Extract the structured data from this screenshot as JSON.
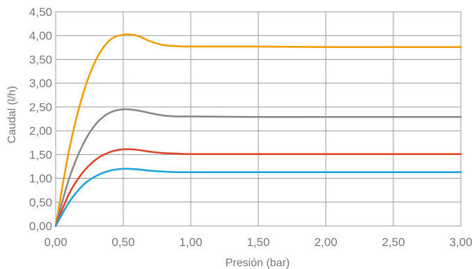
{
  "chart_data": {
    "type": "line",
    "title": "",
    "xlabel": "Presión (bar)",
    "ylabel": "Caudal (l/h)",
    "xlim": [
      0,
      3
    ],
    "ylim": [
      0,
      4.5
    ],
    "x_ticks": [
      "0,00",
      "0,50",
      "1,00",
      "1,50",
      "2,00",
      "2,50",
      "3,00"
    ],
    "y_ticks": [
      "0,00",
      "0,50",
      "1,00",
      "1,50",
      "2,00",
      "2,50",
      "3,00",
      "3,50",
      "4,00",
      "4,50"
    ],
    "grid": true,
    "legend": "none",
    "x": [
      0,
      0.1,
      0.2,
      0.3,
      0.4,
      0.5,
      0.6,
      0.7,
      0.8,
      0.9,
      1.0,
      1.5,
      2.0,
      2.5,
      3.0
    ],
    "series": [
      {
        "color": "#f29d00",
        "values": [
          0,
          1.6,
          2.75,
          3.5,
          3.9,
          4.02,
          4.0,
          3.88,
          3.8,
          3.78,
          3.77,
          3.77,
          3.76,
          3.76,
          3.76
        ]
      },
      {
        "color": "#888888",
        "values": [
          0,
          1.0,
          1.7,
          2.15,
          2.38,
          2.45,
          2.43,
          2.37,
          2.32,
          2.3,
          2.3,
          2.29,
          2.29,
          2.29,
          2.29
        ]
      },
      {
        "color": "#e0452b",
        "values": [
          0,
          0.68,
          1.12,
          1.4,
          1.55,
          1.61,
          1.6,
          1.56,
          1.53,
          1.52,
          1.51,
          1.51,
          1.51,
          1.51,
          1.51
        ]
      },
      {
        "color": "#1ea3dc",
        "values": [
          0,
          0.5,
          0.85,
          1.05,
          1.16,
          1.2,
          1.19,
          1.16,
          1.14,
          1.13,
          1.13,
          1.13,
          1.13,
          1.13,
          1.13
        ]
      }
    ]
  }
}
